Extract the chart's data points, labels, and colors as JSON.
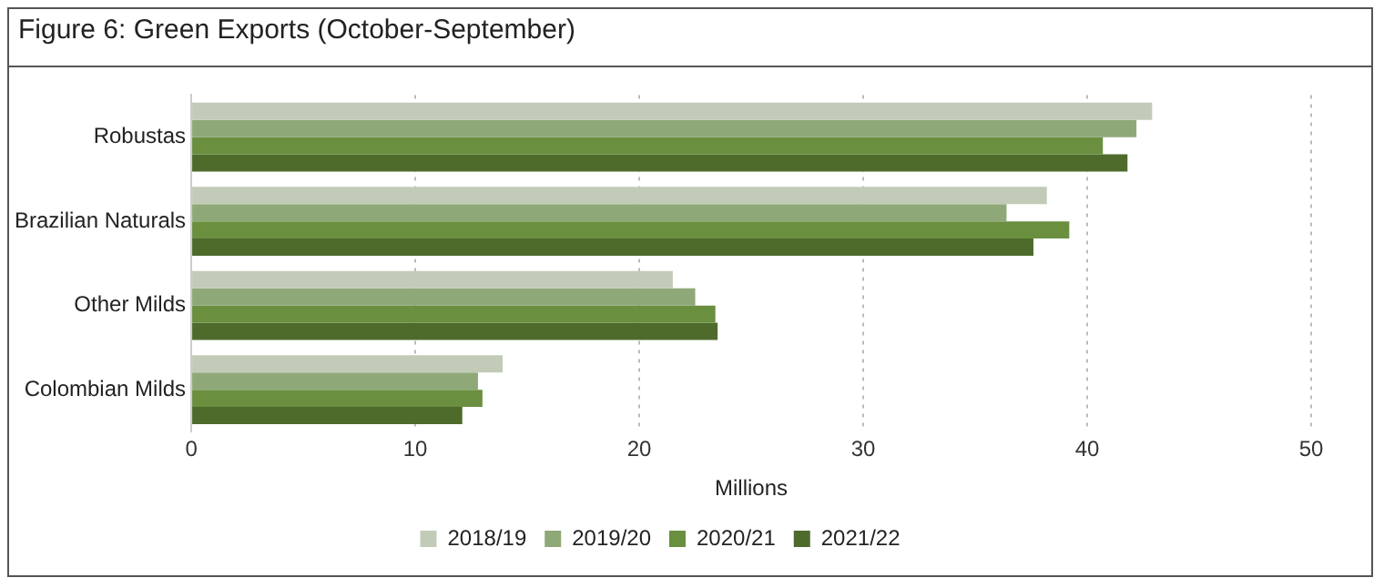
{
  "chart_data": {
    "type": "bar",
    "orientation": "horizontal",
    "title": "Figure 6: Green Exports (October-September)",
    "xlabel": "Millions",
    "categories": [
      "Robustas",
      "Brazilian Naturals",
      "Other Milds",
      "Colombian Milds"
    ],
    "series": [
      {
        "name": "2018/19",
        "color": "#c2cbb7",
        "values": [
          42.9,
          38.2,
          21.5,
          13.9
        ]
      },
      {
        "name": "2019/20",
        "color": "#8fa878",
        "values": [
          42.2,
          36.4,
          22.5,
          12.8
        ]
      },
      {
        "name": "2020/21",
        "color": "#6a8f3f",
        "values": [
          40.7,
          39.2,
          23.4,
          13.0
        ]
      },
      {
        "name": "2021/22",
        "color": "#4e6b2c",
        "values": [
          41.8,
          37.6,
          23.5,
          12.1
        ]
      }
    ],
    "xlim": [
      0,
      50
    ],
    "xticks": [
      0,
      10,
      20,
      30,
      40,
      50
    ],
    "grid": "x",
    "legend": "bottom"
  }
}
